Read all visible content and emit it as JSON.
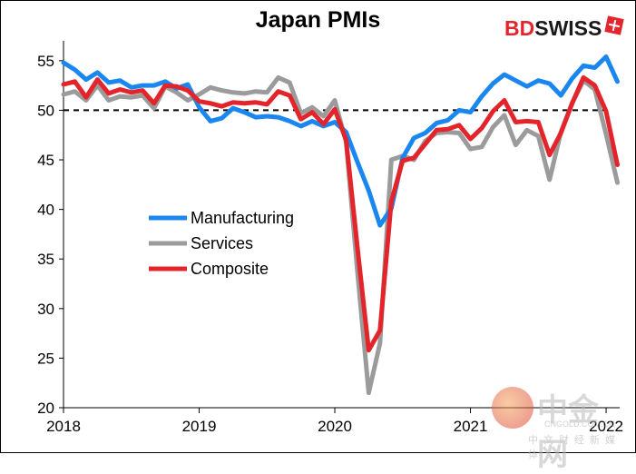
{
  "brand": {
    "bd": "BD",
    "swiss": "SWISS"
  },
  "watermark": {
    "main": "中金网",
    "domain": "CNGOLD.COM.CN",
    "sub": "中文财经新媒体"
  },
  "chart_data": {
    "type": "line",
    "title": "Japan PMIs",
    "xlabel": "",
    "ylabel": "",
    "xlim": [
      2018.0,
      2022.1
    ],
    "ylim": [
      20,
      57
    ],
    "yticks": [
      20,
      25,
      30,
      35,
      40,
      45,
      50,
      55
    ],
    "xticks": [
      {
        "value": 2018,
        "label": "2018"
      },
      {
        "value": 2019,
        "label": "2019"
      },
      {
        "value": 2020,
        "label": "2020"
      },
      {
        "value": 2021,
        "label": "2021"
      },
      {
        "value": 2022,
        "label": "2022"
      }
    ],
    "reference_line": {
      "y": 50,
      "style": "dashed",
      "color": "#000000"
    },
    "legend_position": "center-left",
    "x_start": 2018.0,
    "x_step": 0.08333,
    "series": [
      {
        "name": "Manufacturing",
        "color": "#1a86f0",
        "values": [
          54.8,
          54.1,
          53.1,
          53.8,
          52.8,
          53.0,
          52.3,
          52.5,
          52.5,
          52.9,
          52.2,
          52.6,
          50.3,
          48.9,
          49.2,
          50.2,
          49.8,
          49.3,
          49.4,
          49.3,
          48.9,
          48.4,
          48.9,
          48.4,
          48.8,
          47.8,
          44.8,
          41.9,
          38.4,
          40.1,
          45.2,
          47.2,
          47.7,
          48.7,
          49.0,
          50.0,
          49.8,
          51.4,
          52.7,
          53.6,
          53.0,
          52.4,
          53.0,
          52.7,
          51.5,
          53.2,
          54.5,
          54.3,
          55.4,
          52.9
        ]
      },
      {
        "name": "Services",
        "color": "#9b9b9b",
        "values": [
          51.6,
          51.9,
          51.0,
          52.5,
          51.0,
          51.4,
          51.3,
          51.5,
          50.2,
          52.4,
          51.8,
          51.0,
          51.6,
          52.3,
          52.0,
          51.8,
          51.7,
          51.9,
          51.8,
          53.3,
          52.8,
          49.7,
          50.3,
          49.4,
          51.0,
          46.8,
          33.8,
          21.5,
          26.5,
          45.0,
          45.4,
          45.0,
          46.9,
          47.7,
          47.8,
          47.7,
          46.1,
          46.3,
          48.3,
          49.5,
          46.5,
          48.0,
          47.4,
          43.0,
          47.8,
          50.7,
          53.0,
          52.1,
          47.6,
          42.7
        ]
      },
      {
        "name": "Composite",
        "color": "#e3242b",
        "values": [
          52.6,
          52.9,
          51.3,
          53.1,
          51.7,
          52.1,
          51.8,
          52.0,
          50.7,
          52.5,
          52.4,
          52.0,
          50.9,
          50.7,
          50.4,
          50.8,
          50.7,
          50.8,
          50.6,
          51.9,
          51.5,
          49.1,
          49.8,
          48.6,
          50.1,
          47.0,
          36.2,
          25.8,
          27.8,
          40.8,
          44.9,
          45.2,
          46.6,
          48.0,
          48.1,
          48.5,
          47.1,
          48.2,
          49.9,
          51.0,
          48.8,
          48.9,
          48.8,
          45.5,
          47.7,
          50.7,
          53.3,
          52.5,
          49.9,
          44.5
        ]
      }
    ]
  }
}
